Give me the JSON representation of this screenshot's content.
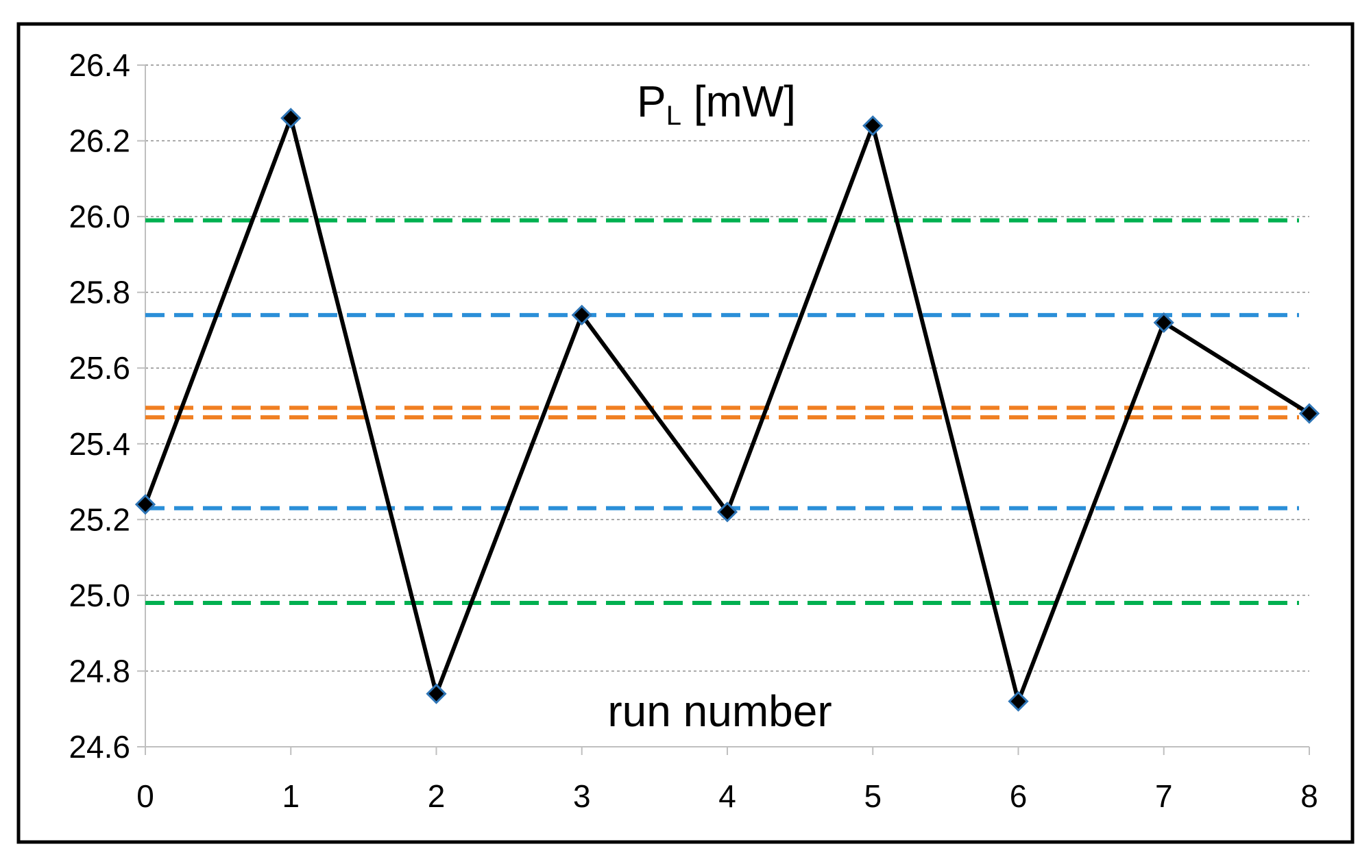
{
  "chart_data": {
    "type": "line",
    "title": "P",
    "title_subscript": "L",
    "title_unit": " [mW]",
    "xlabel": "run number",
    "ylabel": "",
    "x": [
      0,
      1,
      2,
      3,
      4,
      5,
      6,
      7,
      8
    ],
    "xlim": [
      0,
      8
    ],
    "ylim": [
      24.6,
      26.4
    ],
    "x_ticks": [
      "0",
      "1",
      "2",
      "3",
      "4",
      "5",
      "6",
      "7",
      "8"
    ],
    "y_ticks": [
      "24.6",
      "24.8",
      "25.0",
      "25.2",
      "25.4",
      "25.6",
      "25.8",
      "26.0",
      "26.2",
      "26.4"
    ],
    "grid": "horizontal dotted",
    "series": [
      {
        "values": [
          25.24,
          26.26,
          24.74,
          25.74,
          25.22,
          26.24,
          24.72,
          25.72,
          25.48
        ],
        "color": "#000000",
        "marker": "diamond",
        "marker_outline": "#2e75b6"
      }
    ],
    "reference_lines": [
      {
        "y": 25.99,
        "color": "#00b050"
      },
      {
        "y": 25.74,
        "color": "#2b8fd8"
      },
      {
        "y": 25.495,
        "color": "#f07f22"
      },
      {
        "y": 25.47,
        "color": "#f07f22"
      },
      {
        "y": 25.23,
        "color": "#2b8fd8"
      },
      {
        "y": 24.98,
        "color": "#00b050"
      }
    ],
    "colors": {
      "frame": "#000000",
      "grid": "#8c8c8c",
      "axis": "#bfbfbf"
    }
  }
}
